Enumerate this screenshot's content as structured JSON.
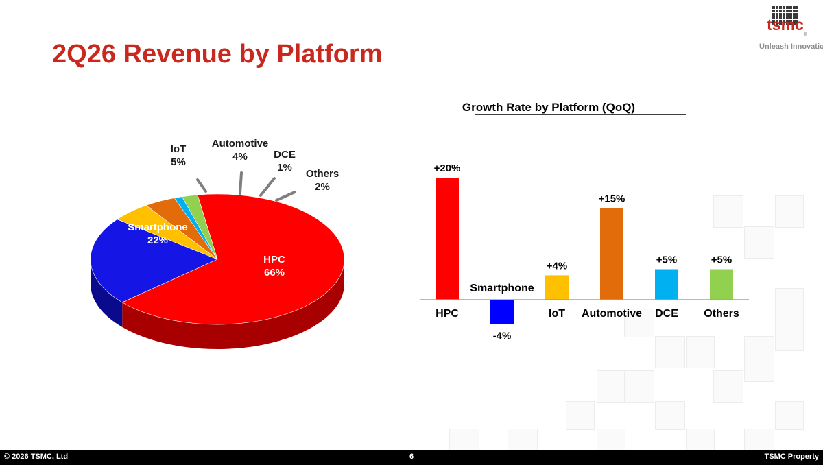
{
  "slide": {
    "title": "2Q26 Revenue by Platform",
    "logo_text": "tsmc",
    "logo_reg": "®",
    "tagline": "Unleash Innovation",
    "footer_left": "© 2026 TSMC, Ltd",
    "page_number": "6",
    "footer_right": "TSMC Property"
  },
  "chart_data": [
    {
      "type": "pie",
      "title": "",
      "slices": [
        {
          "label": "HPC",
          "value": 66,
          "display": "66%",
          "color": "#ff0000",
          "side": "#a80000"
        },
        {
          "label": "Smartphone",
          "value": 22,
          "display": "22%",
          "color": "#1515e6",
          "side": "#0a0a8c"
        },
        {
          "label": "IoT",
          "value": 5,
          "display": "5%",
          "color": "#ffc000",
          "side": "#b38600"
        },
        {
          "label": "Automotive",
          "value": 4,
          "display": "4%",
          "color": "#e36c0a",
          "side": "#9c4a07"
        },
        {
          "label": "DCE",
          "value": 1,
          "display": "1%",
          "color": "#00b0f0",
          "side": "#007aa8"
        },
        {
          "label": "Others",
          "value": 2,
          "display": "2%",
          "color": "#92d050",
          "side": "#5f8f2f"
        }
      ]
    },
    {
      "type": "bar",
      "title": "Growth Rate by Platform (QoQ)",
      "categories": [
        "HPC",
        "Smartphone",
        "IoT",
        "Automotive",
        "DCE",
        "Others"
      ],
      "values": [
        20,
        -4,
        4,
        15,
        5,
        5
      ],
      "value_labels": [
        "+20%",
        "-4%",
        "+4%",
        "+15%",
        "+5%",
        "+5%"
      ],
      "colors": [
        "#ff0000",
        "#0000ff",
        "#ffc000",
        "#e36c0a",
        "#00b0f0",
        "#92d050"
      ],
      "ylim": [
        -4,
        20
      ]
    }
  ]
}
